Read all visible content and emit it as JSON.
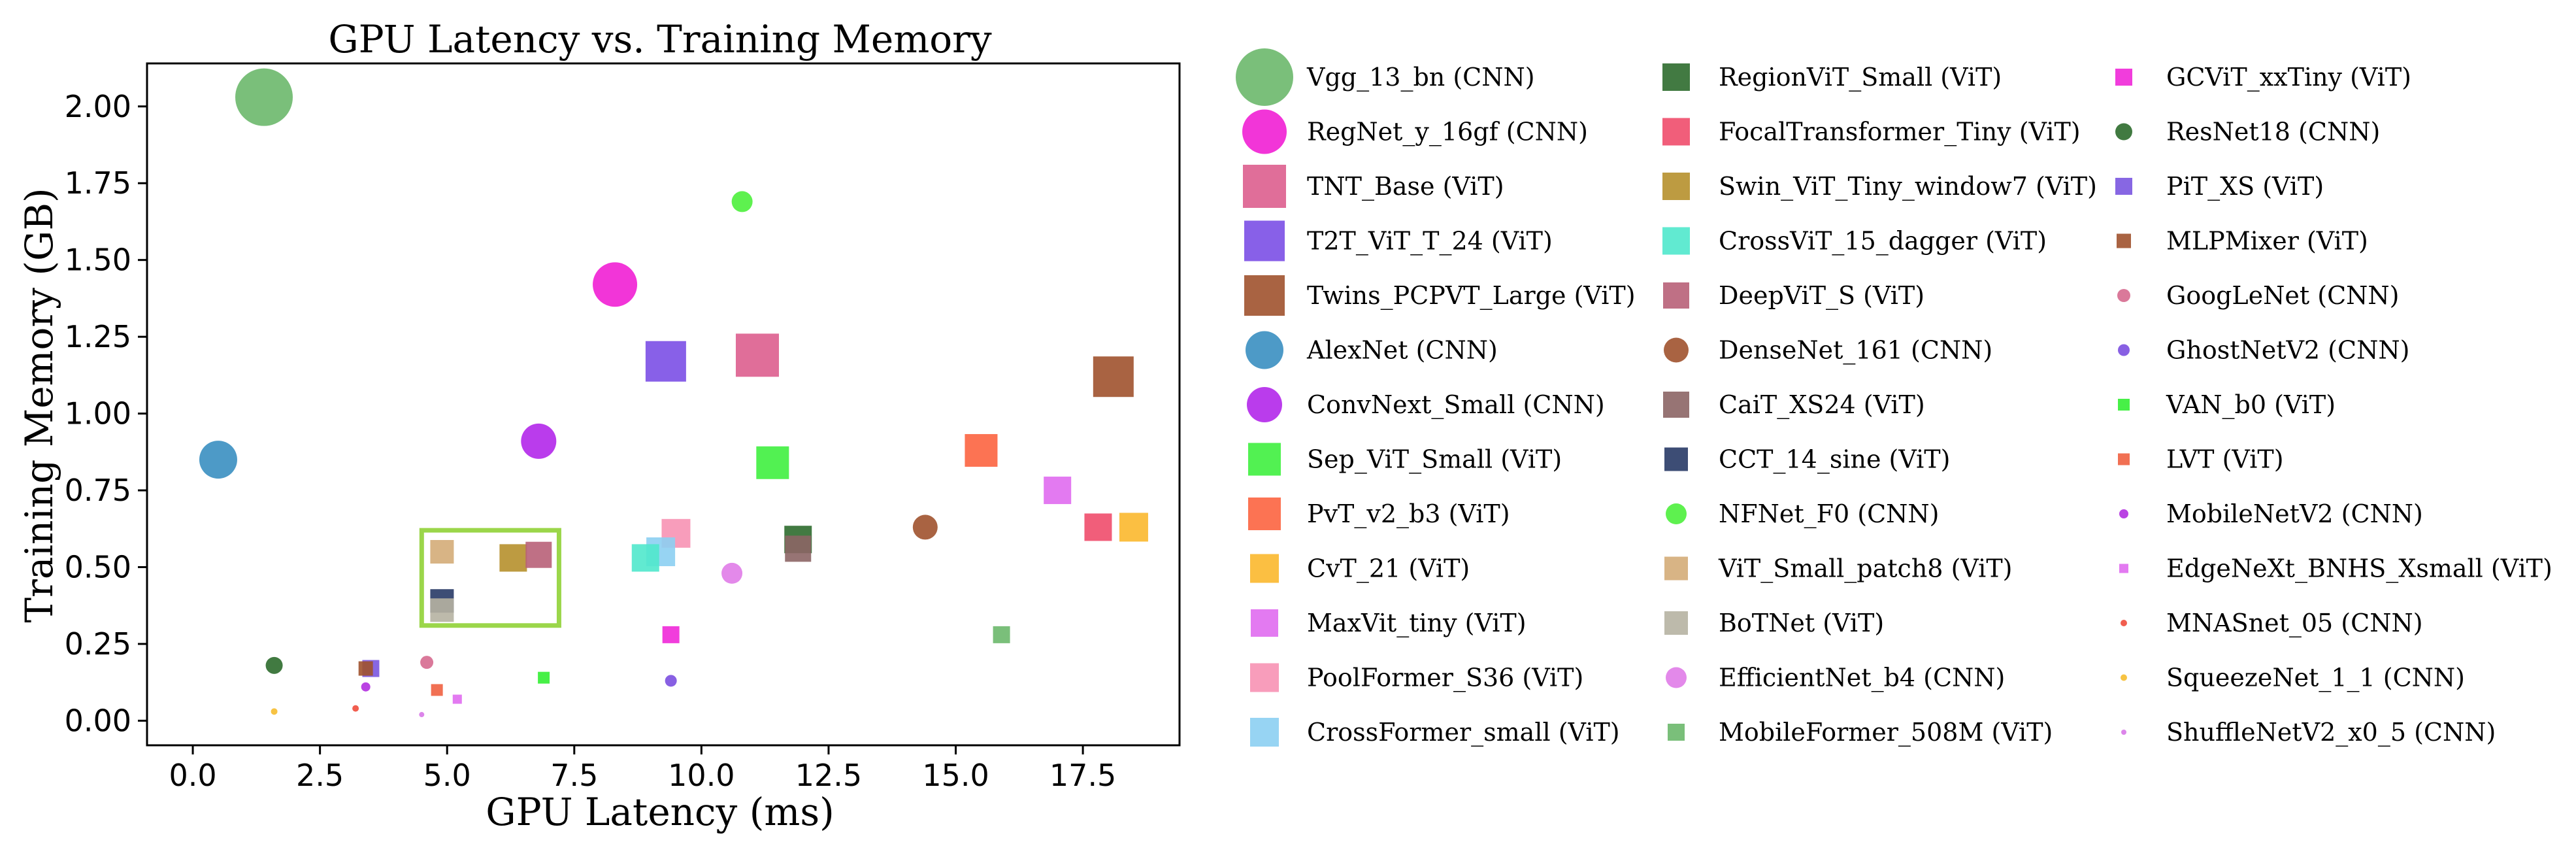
{
  "chart_data": {
    "type": "scatter",
    "title": "GPU Latency vs. Training  Memory",
    "xlabel": "GPU Latency (ms)",
    "ylabel": "Training Memory (GB)",
    "xlim": [
      -0.9,
      19.4
    ],
    "ylim": [
      -0.08,
      2.14
    ],
    "x_ticks": [
      0.0,
      2.5,
      5.0,
      7.5,
      10.0,
      12.5,
      15.0,
      17.5
    ],
    "x_tick_labels": [
      "0.0",
      "2.5",
      "5.0",
      "7.5",
      "10.0",
      "12.5",
      "15.0",
      "17.5"
    ],
    "y_ticks": [
      0.0,
      0.25,
      0.5,
      0.75,
      1.0,
      1.25,
      1.5,
      1.75,
      2.0
    ],
    "y_tick_labels": [
      "0.00",
      "0.25",
      "0.50",
      "0.75",
      "1.00",
      "1.25",
      "1.50",
      "1.75",
      "2.00"
    ],
    "grid": false,
    "legend_position": "outside-right",
    "highlight_box": {
      "x": [
        4.5,
        7.2
      ],
      "y": [
        0.31,
        0.62
      ],
      "color": "#9bd64a"
    },
    "series": [
      {
        "name": "Vgg_13_bn (CNN)",
        "marker": "circle",
        "color": "#6bb86b",
        "x": 1.4,
        "y": 2.03,
        "size": 44
      },
      {
        "name": "RegNet_y_16gf (CNN)",
        "marker": "circle",
        "color": "#f11fd4",
        "x": 8.3,
        "y": 1.42,
        "size": 34
      },
      {
        "name": "TNT_Base (ViT)",
        "marker": "square",
        "color": "#dd5e8e",
        "x": 11.1,
        "y": 1.19,
        "size": 33
      },
      {
        "name": "T2T_ViT_T_24 (ViT)",
        "marker": "square",
        "color": "#7b4fe6",
        "x": 9.3,
        "y": 1.17,
        "size": 31
      },
      {
        "name": "Twins_PCPVT_Large (ViT)",
        "marker": "square",
        "color": "#a0522d",
        "x": 18.1,
        "y": 1.12,
        "size": 31
      },
      {
        "name": "AlexNet (CNN)",
        "marker": "circle",
        "color": "#3a8fc1",
        "x": 0.5,
        "y": 0.85,
        "size": 29
      },
      {
        "name": "ConvNext_Small (CNN)",
        "marker": "circle",
        "color": "#b327ea",
        "x": 6.8,
        "y": 0.91,
        "size": 27
      },
      {
        "name": "Sep_ViT_Small (ViT)",
        "marker": "square",
        "color": "#3ff03f",
        "x": 11.4,
        "y": 0.84,
        "size": 25
      },
      {
        "name": "PvT_v2_b3 (ViT)",
        "marker": "square",
        "color": "#fc6440",
        "x": 15.5,
        "y": 0.88,
        "size": 25
      },
      {
        "name": "CvT_21 (ViT)",
        "marker": "square",
        "color": "#fbb82e",
        "x": 18.5,
        "y": 0.63,
        "size": 22
      },
      {
        "name": "MaxVit_tiny (ViT)",
        "marker": "square",
        "color": "#e06cf0",
        "x": 17.0,
        "y": 0.75,
        "size": 21
      },
      {
        "name": "PoolFormer_S36 (ViT)",
        "marker": "square",
        "color": "#f792b4",
        "x": 9.5,
        "y": 0.61,
        "size": 22
      },
      {
        "name": "CrossFormer_small (ViT)",
        "marker": "square",
        "color": "#8ccff2",
        "x": 9.2,
        "y": 0.55,
        "size": 22
      },
      {
        "name": "RegionViT_Small (ViT)",
        "marker": "square",
        "color": "#2e6b2e",
        "x": 11.9,
        "y": 0.59,
        "size": 21
      },
      {
        "name": "FocalTransformer_Tiny (ViT)",
        "marker": "square",
        "color": "#f04c6c",
        "x": 17.8,
        "y": 0.63,
        "size": 21
      },
      {
        "name": "Swin_ViT_Tiny_window7 (ViT)",
        "marker": "square",
        "color": "#b6902c",
        "x": 6.3,
        "y": 0.53,
        "size": 21
      },
      {
        "name": "CrossViT_15_dagger (ViT)",
        "marker": "square",
        "color": "#50e8cc",
        "x": 8.9,
        "y": 0.53,
        "size": 21
      },
      {
        "name": "DeepViT_S (ViT)",
        "marker": "square",
        "color": "#b86078",
        "x": 6.8,
        "y": 0.54,
        "size": 20
      },
      {
        "name": "DenseNet_161 (CNN)",
        "marker": "circle",
        "color": "#a0522d",
        "x": 14.4,
        "y": 0.63,
        "size": 19
      },
      {
        "name": "CaiT_XS24 (ViT)",
        "marker": "square",
        "color": "#8c6565",
        "x": 11.9,
        "y": 0.56,
        "size": 20
      },
      {
        "name": "CCT_14_sine (ViT)",
        "marker": "square",
        "color": "#283a66",
        "x": 4.9,
        "y": 0.39,
        "size": 18
      },
      {
        "name": "NFNet_F0 (CNN)",
        "marker": "circle",
        "color": "#4cf03c",
        "x": 10.8,
        "y": 1.69,
        "size": 16
      },
      {
        "name": "ViT_Small_patch8 (ViT)",
        "marker": "square",
        "color": "#d4ac78",
        "x": 4.9,
        "y": 0.55,
        "size": 18
      },
      {
        "name": "BoTNet (ViT)",
        "marker": "square",
        "color": "#b6b3a2",
        "x": 4.9,
        "y": 0.36,
        "size": 18
      },
      {
        "name": "EfficientNet_b4 (CNN)",
        "marker": "circle",
        "color": "#e07ce8",
        "x": 10.6,
        "y": 0.48,
        "size": 16
      },
      {
        "name": "MobileFormer_508M (ViT)",
        "marker": "square",
        "color": "#6bb86b",
        "x": 15.9,
        "y": 0.28,
        "size": 13
      },
      {
        "name": "GCViT_xxTiny (ViT)",
        "marker": "square",
        "color": "#f028d8",
        "x": 9.4,
        "y": 0.28,
        "size": 13
      },
      {
        "name": "ResNet18 (CNN)",
        "marker": "circle",
        "color": "#2c6b2c",
        "x": 1.6,
        "y": 0.18,
        "size": 13
      },
      {
        "name": "PiT_XS (ViT)",
        "marker": "square",
        "color": "#7a56e0",
        "x": 3.5,
        "y": 0.17,
        "size": 13
      },
      {
        "name": "MLPMixer (ViT)",
        "marker": "square",
        "color": "#a0522d",
        "x": 3.4,
        "y": 0.17,
        "size": 11
      },
      {
        "name": "GoogLeNet (CNN)",
        "marker": "circle",
        "color": "#d66a8f",
        "x": 4.6,
        "y": 0.19,
        "size": 10
      },
      {
        "name": "GhostNetV2 (CNN)",
        "marker": "circle",
        "color": "#7b4fe0",
        "x": 9.4,
        "y": 0.13,
        "size": 9
      },
      {
        "name": "VAN_b0 (ViT)",
        "marker": "square",
        "color": "#33ee33",
        "x": 6.9,
        "y": 0.14,
        "size": 9
      },
      {
        "name": "LVT (ViT)",
        "marker": "square",
        "color": "#f06040",
        "x": 4.8,
        "y": 0.1,
        "size": 9
      },
      {
        "name": "MobileNetV2 (CNN)",
        "marker": "circle",
        "color": "#b22fe0",
        "x": 3.4,
        "y": 0.11,
        "size": 7
      },
      {
        "name": "EdgeNeXt_BNHS_Xsmall (ViT)",
        "marker": "square",
        "color": "#e06cf0",
        "x": 5.2,
        "y": 0.07,
        "size": 7
      },
      {
        "name": "MNASnet_05 (CNN)",
        "marker": "circle",
        "color": "#f04c3c",
        "x": 3.2,
        "y": 0.04,
        "size": 5
      },
      {
        "name": "SqueezeNet_1_1 (CNN)",
        "marker": "circle",
        "color": "#f6bd2f",
        "x": 1.6,
        "y": 0.03,
        "size": 5
      },
      {
        "name": "ShuffleNetV2_x0_5 (CNN)",
        "marker": "circle",
        "color": "#d878e8",
        "x": 4.5,
        "y": 0.02,
        "size": 4
      }
    ]
  }
}
